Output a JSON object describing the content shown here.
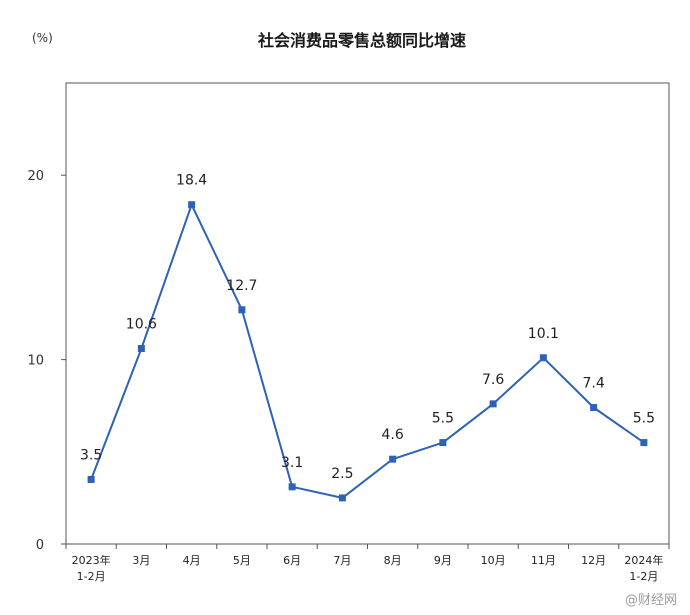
{
  "chart_data": {
    "type": "line",
    "title": "社会消费品零售总额同比增速",
    "unit_label": "(%)",
    "ylim": [
      0,
      25
    ],
    "yticks": [
      0,
      10,
      20
    ],
    "grid": false,
    "legend": "none",
    "categories": [
      [
        "2023年",
        "1-2月"
      ],
      [
        "3月"
      ],
      [
        "4月"
      ],
      [
        "5月"
      ],
      [
        "6月"
      ],
      [
        "7月"
      ],
      [
        "8月"
      ],
      [
        "9月"
      ],
      [
        "10月"
      ],
      [
        "11月"
      ],
      [
        "12月"
      ],
      [
        "2024年",
        "1-2月"
      ]
    ],
    "series": [
      {
        "values": [
          3.5,
          10.6,
          18.4,
          12.7,
          3.1,
          2.5,
          4.6,
          5.5,
          7.6,
          10.1,
          7.4,
          5.5
        ],
        "labels": [
          "3.5",
          "10.6",
          "18.4",
          "12.7",
          "3.1",
          "2.5",
          "4.6",
          "5.5",
          "7.6",
          "10.1",
          "7.4",
          "5.5"
        ],
        "color": "#2e62b5"
      }
    ]
  },
  "watermark": "@财经网"
}
